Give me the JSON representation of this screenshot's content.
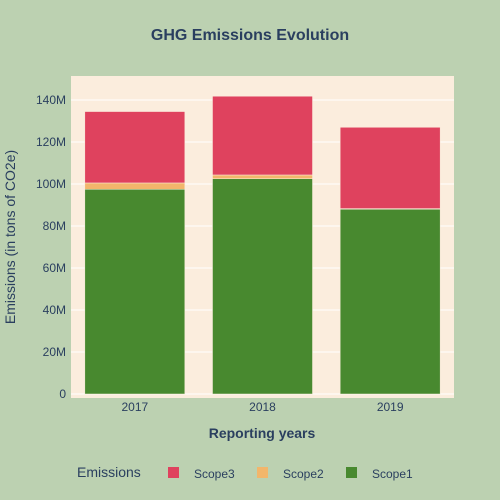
{
  "chart_data": {
    "type": "bar",
    "stacked": true,
    "title": "GHG Emissions Evolution",
    "xlabel": "Reporting years",
    "ylabel": "Emissions (in tons of CO2e)",
    "categories": [
      "2017",
      "2018",
      "2019"
    ],
    "ylim": [
      0,
      150000000
    ],
    "yticks": [
      0,
      20000000,
      40000000,
      60000000,
      80000000,
      100000000,
      120000000,
      140000000
    ],
    "ytick_labels": [
      "0",
      "20M",
      "40M",
      "60M",
      "80M",
      "100M",
      "120M",
      "140M"
    ],
    "grid": true,
    "legend": {
      "title": "Emissions",
      "placement": "bottom",
      "order": [
        "Scope3",
        "Scope2",
        "Scope1"
      ]
    },
    "series": [
      {
        "name": "Scope1",
        "color": "#48892f",
        "values": [
          97500000,
          102500000,
          88000000
        ]
      },
      {
        "name": "Scope2",
        "color": "#f2b66b",
        "values": [
          3000000,
          1800000,
          300000
        ]
      },
      {
        "name": "Scope3",
        "color": "#df425e",
        "values": [
          34000000,
          37500000,
          38700000
        ]
      }
    ],
    "plot_background": "#fbeddd",
    "paper_background": "#bcd1b1"
  }
}
